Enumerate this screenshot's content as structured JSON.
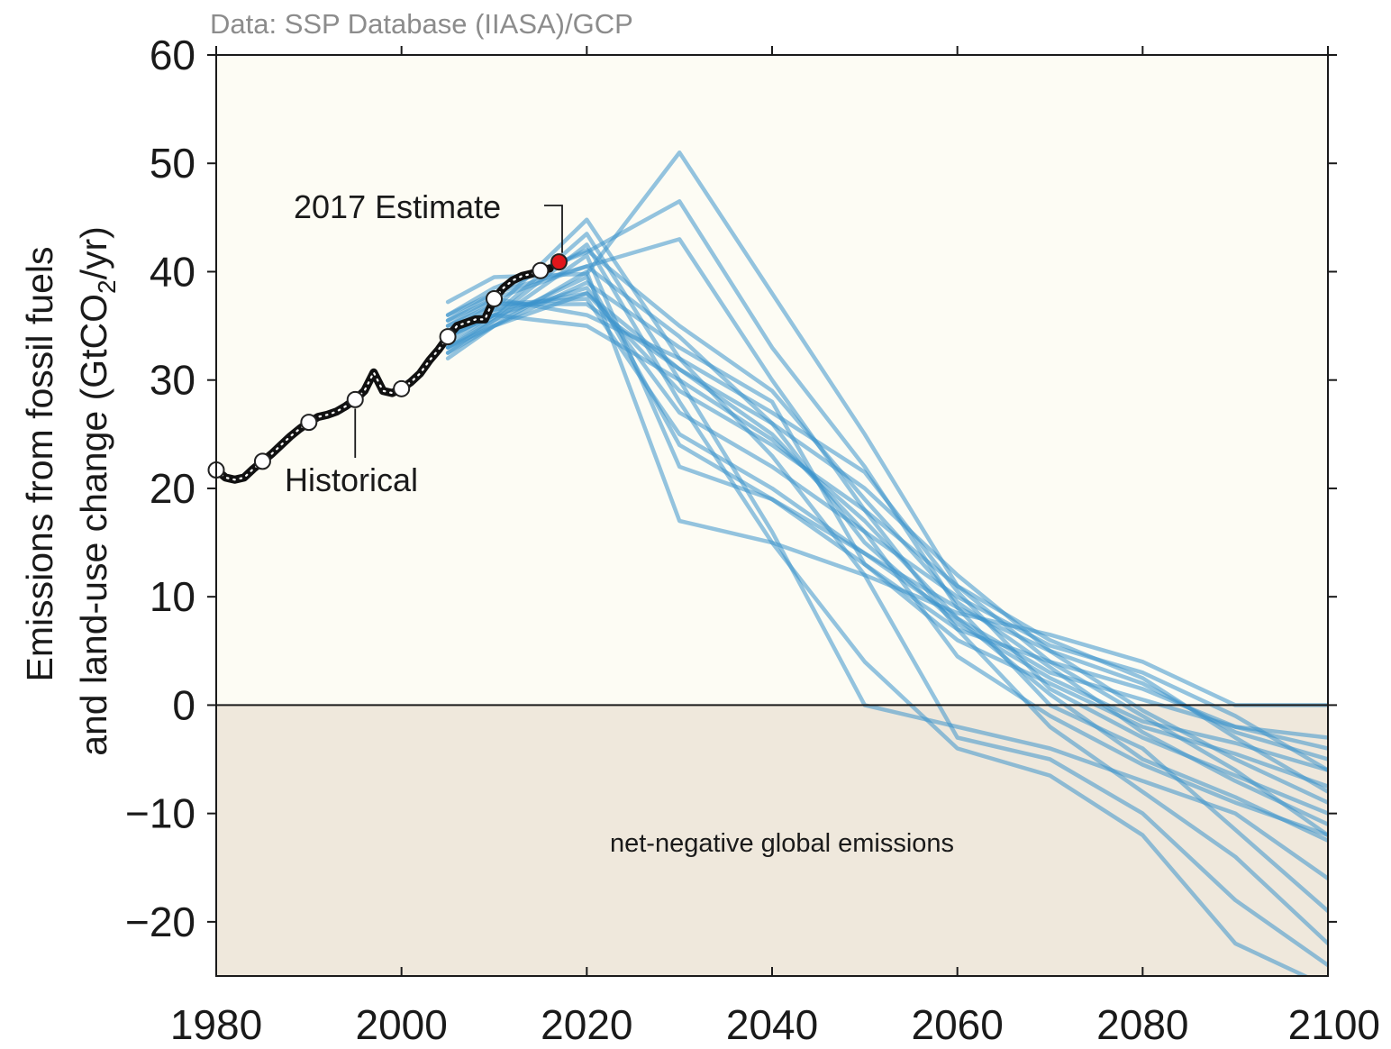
{
  "chart_data": {
    "type": "line",
    "source": "Data: SSP Database (IIASA)/GCP",
    "ylabel_line1": "Emissions from fossil fuels",
    "ylabel_line2": "and land-use change (GtCO",
    "ylabel_sub": "2",
    "ylabel_end": "/yr)",
    "xlim": [
      1980,
      2100
    ],
    "ylim": [
      -25,
      60
    ],
    "x_ticks": [
      1980,
      2000,
      2020,
      2040,
      2060,
      2080,
      2100
    ],
    "x_tick_labels": [
      "1980",
      "2000",
      "2020",
      "2040",
      "2060",
      "2080",
      "2100"
    ],
    "y_ticks": [
      -20,
      -10,
      0,
      10,
      20,
      30,
      40,
      50,
      60
    ],
    "y_tick_labels": [
      "−20",
      "−10",
      "0",
      "10",
      "20",
      "30",
      "40",
      "50",
      "60"
    ],
    "colors": {
      "plot_background": "#fdfcf4",
      "negative_region": "#efe8dc",
      "historical": "#111111",
      "scenario": "#3d93cc",
      "estimate_marker": "#e0161b"
    },
    "annotations": {
      "estimate": "2017 Estimate",
      "historical": "Historical",
      "negative_region": "net-negative global emissions"
    },
    "historical": {
      "name": "Historical",
      "x": [
        1980,
        1981,
        1982,
        1983,
        1984,
        1985,
        1986,
        1987,
        1988,
        1989,
        1990,
        1991,
        1992,
        1993,
        1994,
        1995,
        1996,
        1997,
        1998,
        1999,
        2000,
        2001,
        2002,
        2003,
        2004,
        2005,
        2006,
        2007,
        2008,
        2009,
        2010,
        2011,
        2012,
        2013,
        2014,
        2015,
        2016
      ],
      "y": [
        21.7,
        21.0,
        20.8,
        21.0,
        21.8,
        22.5,
        23.2,
        24.0,
        24.8,
        25.5,
        26.1,
        26.6,
        26.8,
        27.1,
        27.6,
        28.2,
        29.0,
        30.7,
        29.0,
        28.8,
        29.2,
        29.8,
        30.6,
        31.8,
        32.8,
        34.0,
        35.0,
        35.3,
        35.6,
        35.6,
        37.5,
        38.5,
        39.2,
        39.6,
        39.8,
        40.1,
        40.3
      ],
      "markers_x": [
        1980,
        1985,
        1990,
        1995,
        2000,
        2005,
        2010,
        2015
      ],
      "markers_y": [
        21.7,
        22.5,
        26.1,
        28.2,
        29.2,
        34.0,
        37.5,
        40.1
      ]
    },
    "estimate_point": {
      "x": 2017,
      "y": 40.9
    },
    "series": [
      {
        "x": [
          2005,
          2010,
          2020,
          2030,
          2040,
          2050,
          2060,
          2070,
          2080,
          2090,
          2100
        ],
        "y": [
          37.2,
          39.5,
          39.8,
          51.0,
          38.0,
          25.0,
          11.0,
          4.0,
          -1.0,
          -6.0,
          -12.0
        ]
      },
      {
        "x": [
          2005,
          2010,
          2020,
          2030,
          2040,
          2050,
          2060,
          2070,
          2080,
          2090,
          2100
        ],
        "y": [
          36.0,
          38.5,
          41.8,
          46.5,
          33.0,
          22.0,
          9.0,
          0.0,
          -4.0,
          -11.5,
          -19.0
        ]
      },
      {
        "x": [
          2005,
          2010,
          2020,
          2030,
          2040,
          2050,
          2060,
          2070,
          2080,
          2090,
          2100
        ],
        "y": [
          35.0,
          37.5,
          40.5,
          43.0,
          30.0,
          18.0,
          7.0,
          -2.0,
          -8.0,
          -14.0,
          -22.0
        ]
      },
      {
        "x": [
          2005,
          2010,
          2020,
          2030,
          2040,
          2050,
          2060,
          2070,
          2080,
          2090,
          2100
        ],
        "y": [
          34.0,
          36.5,
          44.8,
          32.0,
          23.0,
          12.0,
          -3.0,
          -5.0,
          -10.0,
          -18.0,
          -24.0
        ]
      },
      {
        "x": [
          2005,
          2010,
          2020,
          2030,
          2040,
          2050,
          2060,
          2070,
          2080,
          2090,
          2100
        ],
        "y": [
          33.5,
          36.0,
          43.5,
          30.0,
          16.0,
          0.0,
          -2.0,
          -4.0,
          -7.0,
          -10.0,
          -16.0
        ]
      },
      {
        "x": [
          2005,
          2010,
          2020,
          2030,
          2040,
          2050,
          2060,
          2070,
          2080,
          2090,
          2100
        ],
        "y": [
          33.0,
          35.8,
          42.5,
          28.0,
          15.0,
          4.0,
          -4.0,
          -6.5,
          -12.0,
          -22.0,
          -26.0
        ]
      },
      {
        "x": [
          2005,
          2010,
          2020,
          2030,
          2040,
          2050,
          2060,
          2070,
          2080,
          2090,
          2100
        ],
        "y": [
          32.5,
          35.5,
          41.5,
          22.0,
          19.0,
          14.0,
          9.0,
          5.0,
          2.0,
          -2.5,
          -5.0
        ]
      },
      {
        "x": [
          2005,
          2010,
          2020,
          2030,
          2040,
          2050,
          2060,
          2070,
          2080,
          2090,
          2100
        ],
        "y": [
          32.0,
          35.0,
          40.0,
          17.0,
          15.0,
          12.0,
          8.5,
          6.5,
          4.0,
          0.0,
          0.0
        ]
      },
      {
        "x": [
          2005,
          2010,
          2020,
          2030,
          2040,
          2050,
          2060,
          2070,
          2080,
          2090,
          2100
        ],
        "y": [
          33.0,
          35.5,
          39.5,
          24.0,
          19.0,
          13.0,
          7.0,
          4.0,
          1.5,
          -2.0,
          -3.0
        ]
      },
      {
        "x": [
          2005,
          2010,
          2020,
          2030,
          2040,
          2050,
          2060,
          2070,
          2080,
          2090,
          2100
        ],
        "y": [
          34.0,
          36.0,
          38.5,
          27.0,
          22.0,
          16.0,
          10.0,
          5.5,
          3.0,
          -1.0,
          -6.0
        ]
      },
      {
        "x": [
          2005,
          2010,
          2020,
          2030,
          2040,
          2050,
          2060,
          2070,
          2080,
          2090,
          2100
        ],
        "y": [
          34.5,
          36.5,
          38.0,
          29.0,
          24.0,
          18.0,
          11.0,
          6.0,
          2.5,
          -3.0,
          -8.0
        ]
      },
      {
        "x": [
          2005,
          2010,
          2020,
          2030,
          2040,
          2050,
          2060,
          2070,
          2080,
          2090,
          2100
        ],
        "y": [
          35.0,
          37.0,
          37.0,
          31.0,
          26.0,
          20.0,
          12.0,
          5.0,
          -0.5,
          -5.0,
          -9.0
        ]
      },
      {
        "x": [
          2005,
          2010,
          2020,
          2030,
          2040,
          2050,
          2060,
          2070,
          2080,
          2090,
          2100
        ],
        "y": [
          35.5,
          37.5,
          36.0,
          32.0,
          27.0,
          21.5,
          10.5,
          1.5,
          -3.0,
          -6.5,
          -10.0
        ]
      },
      {
        "x": [
          2005,
          2010,
          2020,
          2030,
          2040,
          2050,
          2060,
          2070,
          2080,
          2090,
          2100
        ],
        "y": [
          34.0,
          36.0,
          35.0,
          30.0,
          24.5,
          17.0,
          8.0,
          1.0,
          -5.0,
          -8.5,
          -12.5
        ]
      },
      {
        "x": [
          2005,
          2010,
          2020,
          2030,
          2040,
          2050,
          2060,
          2070,
          2080,
          2090,
          2100
        ],
        "y": [
          33.0,
          35.0,
          39.0,
          33.0,
          28.0,
          13.0,
          6.0,
          2.0,
          -2.0,
          -4.5,
          -7.5
        ]
      },
      {
        "x": [
          2005,
          2010,
          2020,
          2030,
          2040,
          2050,
          2060,
          2070,
          2080,
          2090,
          2100
        ],
        "y": [
          35.5,
          38.0,
          40.5,
          34.0,
          26.0,
          15.0,
          7.5,
          2.5,
          -1.5,
          -3.5,
          -6.0
        ]
      },
      {
        "x": [
          2005,
          2010,
          2020,
          2030,
          2040,
          2050,
          2060,
          2070,
          2080,
          2090,
          2100
        ],
        "y": [
          34.5,
          37.0,
          37.5,
          25.0,
          20.0,
          14.0,
          8.0,
          3.0,
          0.5,
          -2.0,
          -4.0
        ]
      },
      {
        "x": [
          2005,
          2010,
          2020,
          2030,
          2040,
          2050,
          2060,
          2070,
          2080,
          2090,
          2100
        ],
        "y": [
          36.0,
          38.0,
          42.0,
          35.0,
          29.0,
          19.0,
          9.5,
          3.5,
          -2.5,
          -7.0,
          -11.0
        ]
      },
      {
        "x": [
          2005,
          2010,
          2020,
          2030,
          2040,
          2050,
          2060,
          2070,
          2080,
          2090,
          2100
        ],
        "y": [
          32.5,
          35.0,
          38.0,
          31.0,
          25.0,
          16.0,
          4.5,
          -1.0,
          -5.5,
          -9.0,
          -12.0
        ]
      }
    ]
  }
}
